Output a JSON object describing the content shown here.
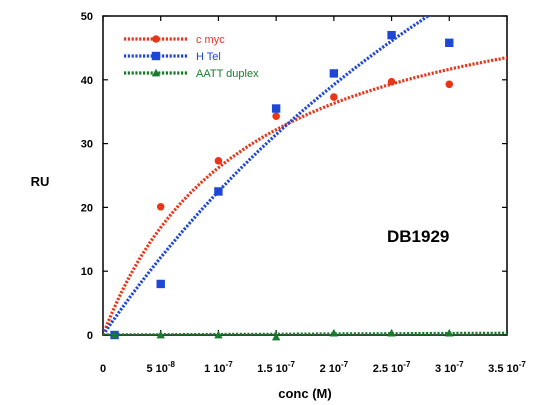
{
  "chart_data": {
    "type": "scatter",
    "xlabel": "conc (M)",
    "ylabel": "RU",
    "xlim": [
      0,
      3.5e-07
    ],
    "ylim": [
      0,
      50
    ],
    "x_ticks": [
      {
        "value": 0,
        "mant": "0",
        "exp": ""
      },
      {
        "value": 5e-08,
        "mant": "5 10",
        "exp": "-8"
      },
      {
        "value": 1e-07,
        "mant": "1 10",
        "exp": "-7"
      },
      {
        "value": 1.5e-07,
        "mant": "1.5 10",
        "exp": "-7"
      },
      {
        "value": 2e-07,
        "mant": "2 10",
        "exp": "-7"
      },
      {
        "value": 2.5e-07,
        "mant": "2.5 10",
        "exp": "-7"
      },
      {
        "value": 3e-07,
        "mant": "3 10",
        "exp": "-7"
      },
      {
        "value": 3.5e-07,
        "mant": "3.5 10",
        "exp": "-7"
      }
    ],
    "y_ticks": [
      0,
      10,
      20,
      30,
      40,
      50
    ],
    "annotation": "DB1929",
    "legend_position": "top-left",
    "grid": false,
    "series": [
      {
        "name": "c myc",
        "color": "#e8361b",
        "marker": "circle",
        "x": [
          1e-08,
          5e-08,
          1e-07,
          1.5e-07,
          2e-07,
          2.5e-07,
          3e-07
        ],
        "y": [
          0,
          20.1,
          27.3,
          34.3,
          37.3,
          39.7,
          39.3
        ],
        "fit": {
          "model": "langmuir",
          "rmax": 59,
          "kd": 1.25e-07
        }
      },
      {
        "name": "H Tel",
        "color": "#1f47d6",
        "marker": "square",
        "x": [
          1e-08,
          5e-08,
          1e-07,
          1.5e-07,
          2e-07,
          2.5e-07,
          3e-07
        ],
        "y": [
          0,
          8,
          22.5,
          35.5,
          41,
          47,
          45.8
        ],
        "fit": {
          "model": "langmuir",
          "rmax": 153,
          "kd": 5.8e-07
        }
      },
      {
        "name": "AATT duplex",
        "color": "#1a7a2c",
        "marker": "triangle",
        "x": [
          1e-08,
          5e-08,
          1e-07,
          1.5e-07,
          2e-07,
          2.5e-07,
          3e-07
        ],
        "y": [
          0,
          0,
          0,
          -0.3,
          0.3,
          0.3,
          0.3
        ],
        "fit": {
          "model": "linear",
          "slope": 800000,
          "intercept": 0
        }
      }
    ]
  }
}
